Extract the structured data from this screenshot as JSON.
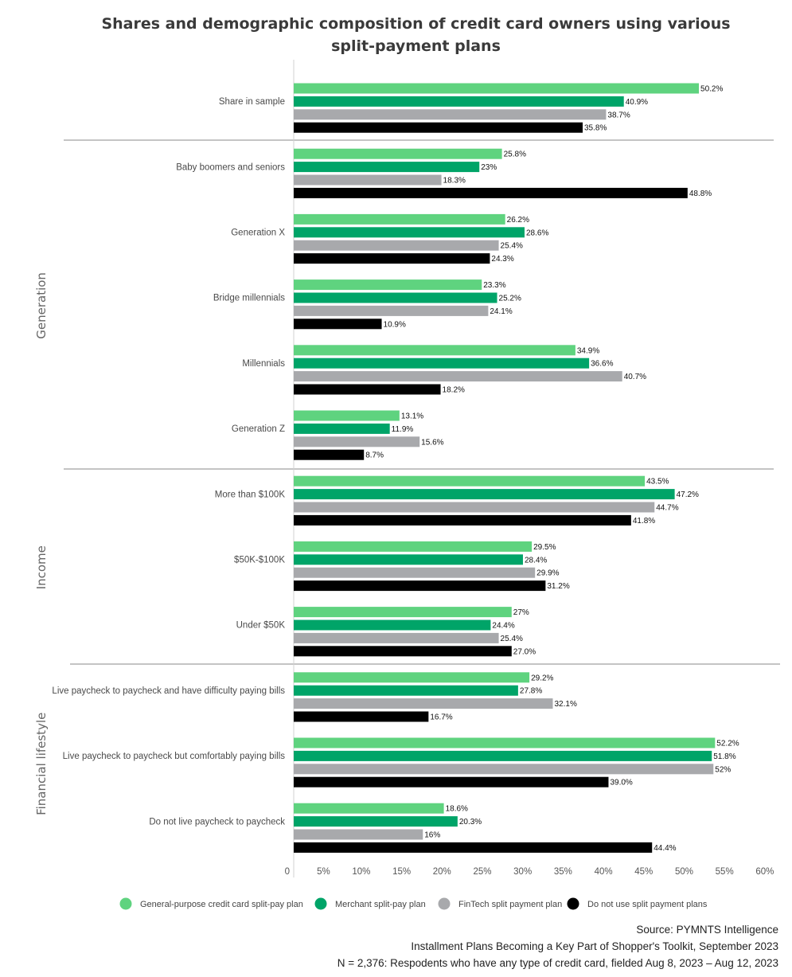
{
  "chart_data": {
    "type": "bar",
    "orientation": "horizontal",
    "title": "Shares and demographic composition of credit card owners using various split-payment plans",
    "title_lines": [
      "Shares and demographic composition of credit card owners using various",
      "split-payment plans"
    ],
    "xlabel": "",
    "ylabel": "",
    "xlim": [
      0,
      60
    ],
    "x_ticks": [
      "0",
      "5%",
      "10%",
      "15%",
      "20%",
      "25%",
      "30%",
      "35%",
      "40%",
      "45%",
      "50%",
      "55%",
      "60%"
    ],
    "grid": false,
    "legend_position": "bottom",
    "series": [
      {
        "name": "General-purpose credit card split-pay plan",
        "color": "#5fd37f"
      },
      {
        "name": "Merchant split-pay plan",
        "color": "#00a468"
      },
      {
        "name": "FinTech split payment plan",
        "color": "#a8a9ac"
      },
      {
        "name": "Do not use split payment plans",
        "color": "#000000"
      }
    ],
    "groups": [
      {
        "name": "",
        "categories": [
          {
            "label": "Share in sample",
            "values": [
              50.2,
              40.9,
              38.7,
              35.8
            ],
            "labels": [
              "50.2%",
              "40.9%",
              "38.7%",
              "35.8%"
            ]
          }
        ]
      },
      {
        "name": "Generation",
        "categories": [
          {
            "label": "Baby boomers and seniors",
            "values": [
              25.8,
              23,
              18.3,
              48.8
            ],
            "labels": [
              "25.8%",
              "23%",
              "18.3%",
              "48.8%"
            ]
          },
          {
            "label": "Generation X",
            "values": [
              26.2,
              28.6,
              25.4,
              24.3
            ],
            "labels": [
              "26.2%",
              "28.6%",
              "25.4%",
              "24.3%"
            ]
          },
          {
            "label": "Bridge millennials",
            "values": [
              23.3,
              25.2,
              24.1,
              10.9
            ],
            "labels": [
              "23.3%",
              "25.2%",
              "24.1%",
              "10.9%"
            ]
          },
          {
            "label": "Millennials",
            "values": [
              34.9,
              36.6,
              40.7,
              18.2
            ],
            "labels": [
              "34.9%",
              "36.6%",
              "40.7%",
              "18.2%"
            ]
          },
          {
            "label": "Generation Z",
            "values": [
              13.1,
              11.9,
              15.6,
              8.7
            ],
            "labels": [
              "13.1%",
              "11.9%",
              "15.6%",
              "8.7%"
            ]
          }
        ]
      },
      {
        "name": "Income",
        "categories": [
          {
            "label": "More than $100K",
            "values": [
              43.5,
              47.2,
              44.7,
              41.8
            ],
            "labels": [
              "43.5%",
              "47.2%",
              "44.7%",
              "41.8%"
            ]
          },
          {
            "label": "$50K-$100K",
            "values": [
              29.5,
              28.4,
              29.9,
              31.2
            ],
            "labels": [
              "29.5%",
              "28.4%",
              "29.9%",
              "31.2%"
            ]
          },
          {
            "label": "Under $50K",
            "values": [
              27,
              24.4,
              25.4,
              27.0
            ],
            "labels": [
              "27%",
              "24.4%",
              "25.4%",
              "27.0%"
            ]
          }
        ]
      },
      {
        "name": "Financial lifestyle",
        "categories": [
          {
            "label": "Live paycheck to paycheck and have difficulty paying bills",
            "values": [
              29.2,
              27.8,
              32.1,
              16.7
            ],
            "labels": [
              "29.2%",
              "27.8%",
              "32.1%",
              "16.7%"
            ]
          },
          {
            "label": "Live paycheck to paycheck but comfortably paying bills",
            "values": [
              52.2,
              51.8,
              52,
              39.0
            ],
            "labels": [
              "52.2%",
              "51.8%",
              "52%",
              "39.0%"
            ]
          },
          {
            "label": "Do not live paycheck to paycheck",
            "values": [
              18.6,
              20.3,
              16,
              44.4
            ],
            "labels": [
              "18.6%",
              "20.3%",
              "16%",
              "44.4%"
            ]
          }
        ]
      }
    ]
  },
  "footer": {
    "source": "Source: PYMNTS Intelligence",
    "report": "Installment Plans Becoming a Key Part of Shopper's Toolkit, September 2023",
    "sample": "N = 2,376: Respodents who have any type of credit card, fielded Aug 8, 2023 – Aug 12, 2023"
  }
}
